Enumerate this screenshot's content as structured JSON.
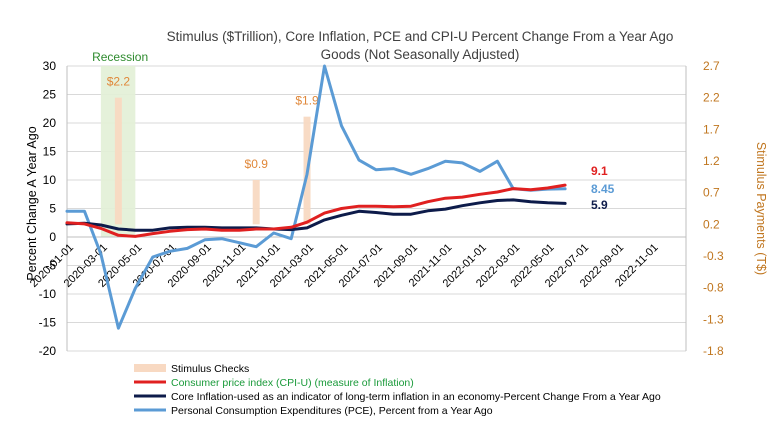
{
  "chart_data": {
    "type": "line",
    "title_lines": [
      "Stimulus ($Trillion), Core Inflation, PCE and CPI-U Percent Change From a Year Ago",
      "Goods (Not Seasonally Adjusted)"
    ],
    "ylabel_left": "Percent Change A Year Ago",
    "ylabel_right": "Stimulus Payments (T$)",
    "ylim_left": [
      -20,
      30
    ],
    "yticks_left": [
      "30",
      "25",
      "20",
      "15",
      "10",
      "5",
      "0",
      "-5",
      "-10",
      "-15",
      "-20"
    ],
    "ylim_right": [
      -1.8,
      2.7
    ],
    "yticks_right": [
      "2.7",
      "2.2",
      "1.7",
      "1.2",
      "0.7",
      "0.2",
      "-0.3",
      "-0.8",
      "-1.3",
      "-1.8"
    ],
    "x_tick_labels": [
      "2020-01-01",
      "2020-03-01",
      "2020-05-01",
      "2020-07-01",
      "2020-09-01",
      "2020-11-01",
      "2021-01-01",
      "2021-03-01",
      "2021-05-01",
      "2021-07-01",
      "2021-09-01",
      "2021-11-01",
      "2022-01-01",
      "2022-03-01",
      "2022-05-01",
      "2022-07-01",
      "2022-09-01",
      "2022-11-01"
    ],
    "recession": {
      "label": "Recession",
      "start": "2020-03-01",
      "end": "2020-05-01"
    },
    "stimulus": [
      {
        "date": "2020-04-01",
        "value": 2.2,
        "label": "$2.2"
      },
      {
        "date": "2020-12-01",
        "value": 0.9,
        "label": "$0.9"
      },
      {
        "date": "2021-03-01",
        "value": 1.9,
        "label": "$1.9"
      }
    ],
    "series": [
      {
        "key": "pce",
        "name": "Personal Consumption Expenditures (PCE), Percent from a Year Ago",
        "color": "#5b9bd5",
        "end_label": "8.45",
        "x": [
          "2020-01-01",
          "2020-02-01",
          "2020-03-01",
          "2020-04-01",
          "2020-05-01",
          "2020-06-01",
          "2020-07-01",
          "2020-08-01",
          "2020-09-01",
          "2020-10-01",
          "2020-11-01",
          "2020-12-01",
          "2021-01-01",
          "2021-02-01",
          "2021-03-01",
          "2021-04-01",
          "2021-05-01",
          "2021-06-01",
          "2021-07-01",
          "2021-08-01",
          "2021-09-01",
          "2021-10-01",
          "2021-11-01",
          "2021-12-01",
          "2022-01-01",
          "2022-02-01",
          "2022-03-01",
          "2022-04-01",
          "2022-05-01",
          "2022-06-01"
        ],
        "values": [
          4.5,
          4.5,
          -3.0,
          -16.0,
          -9.0,
          -3.5,
          -2.5,
          -2.0,
          -0.5,
          -0.3,
          -1.0,
          -1.7,
          0.7,
          -0.3,
          11.0,
          30.0,
          19.5,
          13.5,
          11.8,
          12.0,
          11.0,
          12.0,
          13.3,
          13.0,
          11.5,
          13.3,
          8.5,
          8.2,
          8.4,
          8.45
        ]
      },
      {
        "key": "cpi",
        "name": "Consumer price index (CPI-U) (measure of Inflation)",
        "color": "#e02020",
        "end_label": "9.1",
        "x": [
          "2020-01-01",
          "2020-02-01",
          "2020-03-01",
          "2020-04-01",
          "2020-05-01",
          "2020-06-01",
          "2020-07-01",
          "2020-08-01",
          "2020-09-01",
          "2020-10-01",
          "2020-11-01",
          "2020-12-01",
          "2021-01-01",
          "2021-02-01",
          "2021-03-01",
          "2021-04-01",
          "2021-05-01",
          "2021-06-01",
          "2021-07-01",
          "2021-08-01",
          "2021-09-01",
          "2021-10-01",
          "2021-11-01",
          "2021-12-01",
          "2022-01-01",
          "2022-02-01",
          "2022-03-01",
          "2022-04-01",
          "2022-05-01",
          "2022-06-01"
        ],
        "values": [
          2.5,
          2.3,
          1.5,
          0.3,
          0.1,
          0.6,
          1.0,
          1.3,
          1.4,
          1.2,
          1.2,
          1.4,
          1.4,
          1.7,
          2.6,
          4.2,
          5.0,
          5.4,
          5.4,
          5.3,
          5.4,
          6.2,
          6.8,
          7.0,
          7.5,
          7.9,
          8.5,
          8.3,
          8.6,
          9.1
        ]
      },
      {
        "key": "core",
        "name": "Core Inflation-used as an indicator of long-term inflation in an economy-Percent Change From a Year Ago",
        "color": "#0d1b4a",
        "end_label": "5.9",
        "x": [
          "2020-01-01",
          "2020-02-01",
          "2020-03-01",
          "2020-04-01",
          "2020-05-01",
          "2020-06-01",
          "2020-07-01",
          "2020-08-01",
          "2020-09-01",
          "2020-10-01",
          "2020-11-01",
          "2020-12-01",
          "2021-01-01",
          "2021-02-01",
          "2021-03-01",
          "2021-04-01",
          "2021-05-01",
          "2021-06-01",
          "2021-07-01",
          "2021-08-01",
          "2021-09-01",
          "2021-10-01",
          "2021-11-01",
          "2021-12-01",
          "2022-01-01",
          "2022-02-01",
          "2022-03-01",
          "2022-04-01",
          "2022-05-01",
          "2022-06-01"
        ],
        "values": [
          2.3,
          2.4,
          2.1,
          1.4,
          1.2,
          1.2,
          1.6,
          1.7,
          1.7,
          1.6,
          1.6,
          1.6,
          1.4,
          1.3,
          1.6,
          3.0,
          3.8,
          4.5,
          4.3,
          4.0,
          4.0,
          4.6,
          4.9,
          5.5,
          6.0,
          6.4,
          6.5,
          6.2,
          6.0,
          5.9
        ]
      }
    ],
    "legend": [
      {
        "text": "Stimulus Checks",
        "swatch": "bar",
        "color": "#f8d9c2",
        "text_style": "legend-text"
      },
      {
        "text": "Consumer price index (CPI-U) (measure of Inflation)",
        "swatch": "line",
        "color": "#e02020",
        "text_style": "legend-green"
      },
      {
        "text": "Core Inflation-used as an indicator of long-term inflation in an economy-Percent Change From a Year Ago",
        "swatch": "line",
        "color": "#0d1b4a",
        "text_style": "legend-text"
      },
      {
        "text": "Personal Consumption Expenditures (PCE), Percent from a Year Ago",
        "swatch": "line",
        "color": "#5b9bd5",
        "text_style": "legend-text"
      }
    ],
    "grid": true
  }
}
